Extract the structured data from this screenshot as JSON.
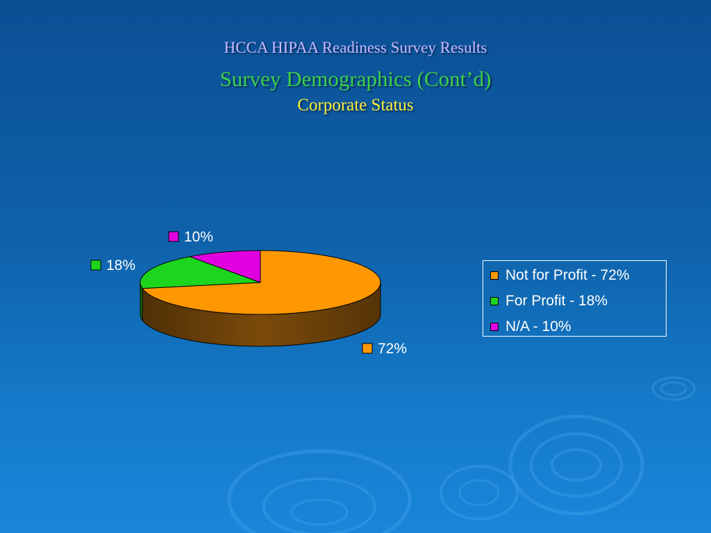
{
  "slide": {
    "title": "HCCA HIPAA Readiness Survey Results",
    "subtitle": "Survey Demographics (Cont’d)",
    "section": "Corporate Status"
  },
  "chart_data": {
    "type": "pie",
    "title": "",
    "legend_position": "right",
    "slices": [
      {
        "label": "Not for Profit - 72%",
        "value": 72,
        "data_label": "72%",
        "color": "#ff9800",
        "side_color": "#7a4a0a"
      },
      {
        "label": "For Profit - 18%",
        "value": 18,
        "data_label": "18%",
        "color": "#1ed51e",
        "side_color": "#0a7a0a"
      },
      {
        "label": "N/A - 10%",
        "value": 10,
        "data_label": "10%",
        "color": "#e000e0",
        "side_color": "#7a007a"
      }
    ]
  }
}
